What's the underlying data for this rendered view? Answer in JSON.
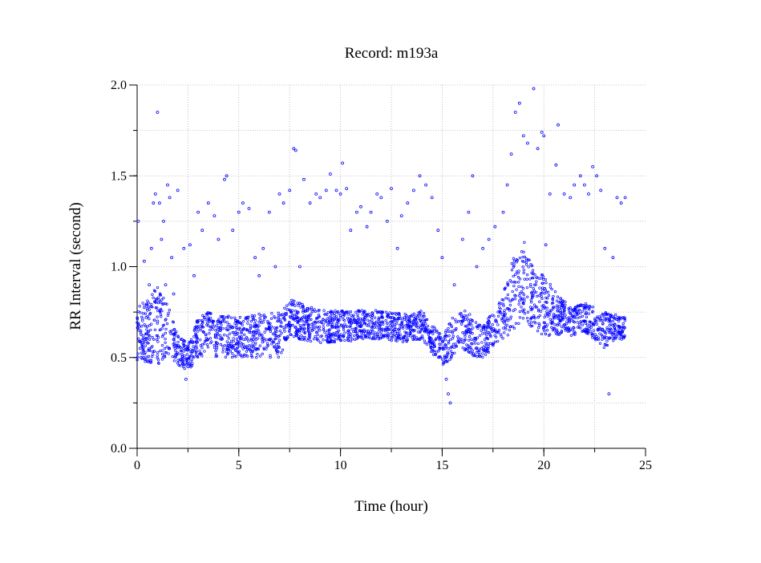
{
  "chart_data": {
    "type": "scatter",
    "title": "Record:  m193a",
    "xlabel": "Time (hour)",
    "ylabel": "RR Interval (second)",
    "xlim": [
      0,
      25
    ],
    "ylim": [
      0,
      2.0
    ],
    "x_ticks": [
      0,
      5,
      10,
      15,
      20,
      25
    ],
    "x_tick_labels": [
      "0",
      "5",
      "10",
      "15",
      "20",
      "25"
    ],
    "y_ticks": [
      0,
      0.5,
      1.0,
      1.5,
      2.0
    ],
    "y_tick_labels": [
      "0.0",
      "0.5",
      "1.0",
      "1.5",
      "2.0"
    ],
    "grid": true,
    "legend": "none",
    "marker_color": "#0000ff",
    "series": [
      {
        "points": [
          [
            0.05,
            1.25
          ],
          [
            0.1,
            0.65
          ],
          [
            0.15,
            0.55
          ],
          [
            0.2,
            0.5
          ],
          [
            0.3,
            0.62
          ],
          [
            0.35,
            1.03
          ],
          [
            0.45,
            0.72
          ],
          [
            0.5,
            0.48
          ],
          [
            0.6,
            0.9
          ],
          [
            0.7,
            1.1
          ],
          [
            0.8,
            1.35
          ],
          [
            0.9,
            1.4
          ],
          [
            1.0,
            1.85
          ],
          [
            1.0,
            0.7
          ],
          [
            1.1,
            1.35
          ],
          [
            1.2,
            1.15
          ],
          [
            1.3,
            1.25
          ],
          [
            1.4,
            0.9
          ],
          [
            1.5,
            1.45
          ],
          [
            1.6,
            1.38
          ],
          [
            1.7,
            1.05
          ],
          [
            1.8,
            0.85
          ],
          [
            2.0,
            1.42
          ],
          [
            2.2,
            0.6
          ],
          [
            2.3,
            1.1
          ],
          [
            2.4,
            0.38
          ],
          [
            2.5,
            0.45
          ],
          [
            2.6,
            1.12
          ],
          [
            2.8,
            0.95
          ],
          [
            3.0,
            1.3
          ],
          [
            3.2,
            1.2
          ],
          [
            3.5,
            1.35
          ],
          [
            3.8,
            1.28
          ],
          [
            4.0,
            1.15
          ],
          [
            4.3,
            1.48
          ],
          [
            4.4,
            1.5
          ],
          [
            4.7,
            1.2
          ],
          [
            5.0,
            1.3
          ],
          [
            5.2,
            1.35
          ],
          [
            5.5,
            1.32
          ],
          [
            5.8,
            1.05
          ],
          [
            6.0,
            0.95
          ],
          [
            6.2,
            1.1
          ],
          [
            6.5,
            1.3
          ],
          [
            6.8,
            1.0
          ],
          [
            7.0,
            1.4
          ],
          [
            7.2,
            1.35
          ],
          [
            7.5,
            1.42
          ],
          [
            7.7,
            1.65
          ],
          [
            7.8,
            1.64
          ],
          [
            8.0,
            1.0
          ],
          [
            8.2,
            1.48
          ],
          [
            8.5,
            1.35
          ],
          [
            8.8,
            1.4
          ],
          [
            9.0,
            1.38
          ],
          [
            9.3,
            1.42
          ],
          [
            9.5,
            1.51
          ],
          [
            9.8,
            1.42
          ],
          [
            10.0,
            1.4
          ],
          [
            10.1,
            1.57
          ],
          [
            10.3,
            1.43
          ],
          [
            10.5,
            1.2
          ],
          [
            10.8,
            1.3
          ],
          [
            11.0,
            1.33
          ],
          [
            11.3,
            1.22
          ],
          [
            11.5,
            1.3
          ],
          [
            11.8,
            1.4
          ],
          [
            12.0,
            1.38
          ],
          [
            12.3,
            1.25
          ],
          [
            12.5,
            1.43
          ],
          [
            12.8,
            1.1
          ],
          [
            13.0,
            1.28
          ],
          [
            13.3,
            1.35
          ],
          [
            13.6,
            1.42
          ],
          [
            13.9,
            1.5
          ],
          [
            14.2,
            1.45
          ],
          [
            14.5,
            1.38
          ],
          [
            14.8,
            1.2
          ],
          [
            15.0,
            1.05
          ],
          [
            15.2,
            0.38
          ],
          [
            15.3,
            0.3
          ],
          [
            15.4,
            0.25
          ],
          [
            15.6,
            0.9
          ],
          [
            16.0,
            1.15
          ],
          [
            16.3,
            1.3
          ],
          [
            16.5,
            1.5
          ],
          [
            16.7,
            1.0
          ],
          [
            17.0,
            1.1
          ],
          [
            17.3,
            1.15
          ],
          [
            17.6,
            1.22
          ],
          [
            18.0,
            1.3
          ],
          [
            18.2,
            1.45
          ],
          [
            18.4,
            1.62
          ],
          [
            18.6,
            1.85
          ],
          [
            18.8,
            1.9
          ],
          [
            19.0,
            1.72
          ],
          [
            19.2,
            1.68
          ],
          [
            19.5,
            1.98
          ],
          [
            19.7,
            1.65
          ],
          [
            19.9,
            1.74
          ],
          [
            20.0,
            1.72
          ],
          [
            20.1,
            1.12
          ],
          [
            20.3,
            1.4
          ],
          [
            20.6,
            1.56
          ],
          [
            20.7,
            1.78
          ],
          [
            21.0,
            1.4
          ],
          [
            21.3,
            1.38
          ],
          [
            21.5,
            1.45
          ],
          [
            21.8,
            1.5
          ],
          [
            22.0,
            1.45
          ],
          [
            22.2,
            1.4
          ],
          [
            22.4,
            1.55
          ],
          [
            22.6,
            1.5
          ],
          [
            22.8,
            1.42
          ],
          [
            23.0,
            1.1
          ],
          [
            23.2,
            0.3
          ],
          [
            23.4,
            1.05
          ],
          [
            23.6,
            1.38
          ],
          [
            23.8,
            1.35
          ],
          [
            24.0,
            1.38
          ]
        ]
      }
    ]
  }
}
